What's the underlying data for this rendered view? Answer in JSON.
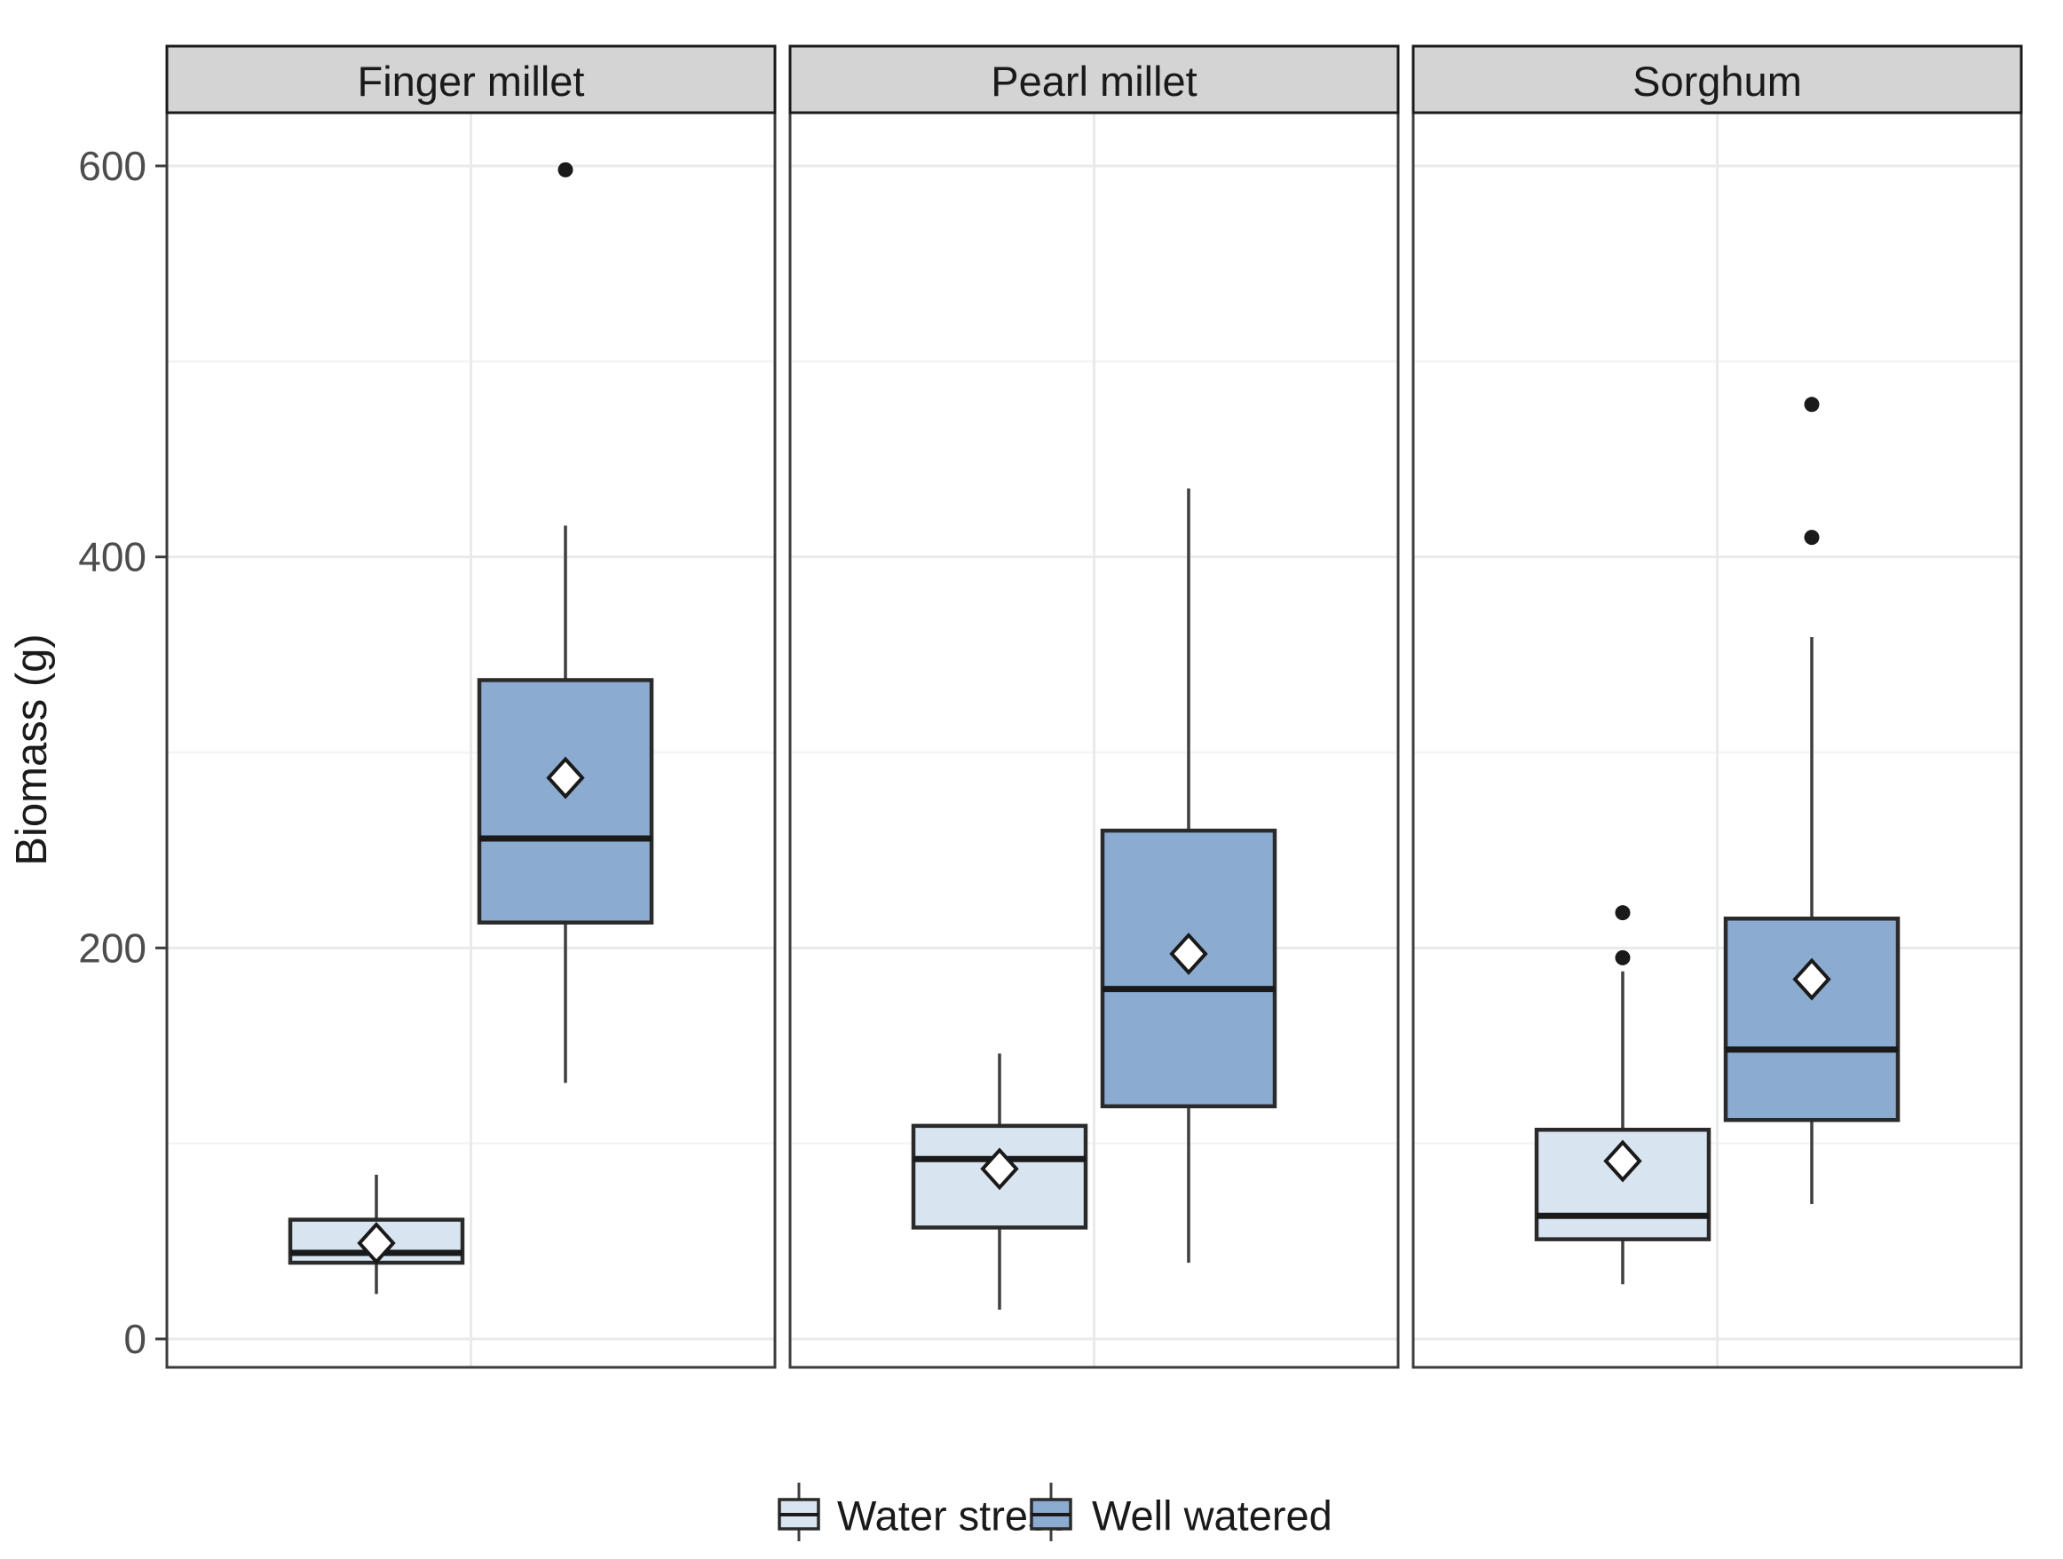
{
  "figure": {
    "background": "#ffffff",
    "y_axis_title": "Biomass (g)"
  },
  "chart_data": {
    "type": "boxplot",
    "title": "",
    "xlabel": "",
    "ylabel": "Biomass (g)",
    "facets": [
      "Finger millet",
      "Pearl millet",
      "Sorghum"
    ],
    "groups": [
      "Water stress",
      "Well watered"
    ],
    "yticks": [
      0,
      200,
      400,
      600
    ],
    "minor_gridlines": [
      100,
      300,
      500
    ],
    "ylim": [
      -15,
      627
    ],
    "grid": true,
    "legend_position": "bottom",
    "series": [
      {
        "facet": "Finger millet",
        "group": "Water stress",
        "whisker_low": 23,
        "q1": 39,
        "median": 44,
        "q3": 61,
        "whisker_high": 84,
        "mean": 49,
        "outliers": []
      },
      {
        "facet": "Finger millet",
        "group": "Well watered",
        "whisker_low": 131,
        "q1": 213,
        "median": 256,
        "q3": 337,
        "whisker_high": 416,
        "mean": 287,
        "outliers": [
          598
        ]
      },
      {
        "facet": "Pearl millet",
        "group": "Water stress",
        "whisker_low": 15,
        "q1": 57,
        "median": 92,
        "q3": 109,
        "whisker_high": 146,
        "mean": 87,
        "outliers": []
      },
      {
        "facet": "Pearl millet",
        "group": "Well watered",
        "whisker_low": 39,
        "q1": 119,
        "median": 179,
        "q3": 260,
        "whisker_high": 435,
        "mean": 197,
        "outliers": []
      },
      {
        "facet": "Sorghum",
        "group": "Water stress",
        "whisker_low": 28,
        "q1": 51,
        "median": 63,
        "q3": 107,
        "whisker_high": 188,
        "mean": 91,
        "outliers": [
          195,
          218
        ]
      },
      {
        "facet": "Sorghum",
        "group": "Well watered",
        "whisker_low": 69,
        "q1": 112,
        "median": 148,
        "q3": 215,
        "whisker_high": 359,
        "mean": 184,
        "outliers": [
          410,
          478
        ]
      }
    ],
    "colors": {
      "water_stress_fill": "#d8e4ef",
      "well_watered_fill": "#8cabd0",
      "box_border": "#2a2a2a",
      "whisker": "#3f3f3f",
      "median": "#1a1a1a",
      "outlier": "#1a1a1a",
      "mean_fill": "#ffffff",
      "mean_border": "#1a1a1a",
      "strip_fill": "#d4d4d4",
      "strip_border": "#1a1a1a",
      "panel_border": "#3c3c3c",
      "grid_major": "#eaeaea",
      "grid_minor": "#f4f4f4",
      "tick_label": "#4d4d4d",
      "text": "#1a1a1a"
    }
  }
}
